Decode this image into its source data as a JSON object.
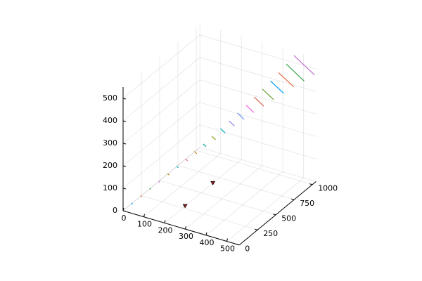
{
  "chart_data": {
    "type": "line3d",
    "xlim": [
      0,
      560
    ],
    "ylim": [
      0,
      1050
    ],
    "zlim": [
      0,
      550
    ],
    "xticks": [
      0,
      100,
      200,
      300,
      400,
      500
    ],
    "yticks": [
      0,
      250,
      500,
      750,
      1000
    ],
    "zticks": [
      0,
      100,
      200,
      300,
      400,
      500
    ],
    "grid": true,
    "series": [
      {
        "color": "#009af9",
        "x": [
          24,
          30
        ],
        "y": [
          47,
          47
        ],
        "z": [
          29,
          25
        ]
      },
      {
        "color": "#e26f46",
        "x": [
          51,
          57
        ],
        "y": [
          95,
          95
        ],
        "z": [
          56,
          52
        ]
      },
      {
        "color": "#3da44d",
        "x": [
          78,
          84
        ],
        "y": [
          142,
          142
        ],
        "z": [
          83,
          79
        ]
      },
      {
        "color": "#c271d2",
        "x": [
          105,
          111
        ],
        "y": [
          189,
          189
        ],
        "z": [
          110,
          106
        ]
      },
      {
        "color": "#ac8e18",
        "x": [
          131,
          139
        ],
        "y": [
          236,
          236
        ],
        "z": [
          137,
          133
        ]
      },
      {
        "color": "#00a9ad",
        "x": [
          158,
          166
        ],
        "y": [
          284,
          284
        ],
        "z": [
          164,
          160
        ]
      },
      {
        "color": "#ed5e93",
        "x": [
          184,
          194
        ],
        "y": [
          331,
          331
        ],
        "z": [
          192,
          186
        ]
      },
      {
        "color": "#c68225",
        "x": [
          210,
          222
        ],
        "y": [
          378,
          378
        ],
        "z": [
          220,
          212
        ]
      },
      {
        "color": "#00a98d",
        "x": [
          236,
          250
        ],
        "y": [
          425,
          425
        ],
        "z": [
          247,
          239
        ]
      },
      {
        "color": "#8e971d",
        "x": [
          261,
          279
        ],
        "y": [
          473,
          473
        ],
        "z": [
          275,
          265
        ]
      },
      {
        "color": "#00a8cb",
        "x": [
          286,
          308
        ],
        "y": [
          520,
          520
        ],
        "z": [
          304,
          290
        ]
      },
      {
        "color": "#9b7fe9",
        "x": [
          311,
          337
        ],
        "y": [
          567,
          567
        ],
        "z": [
          332,
          316
        ]
      },
      {
        "color": "#618df6",
        "x": [
          335,
          367
        ],
        "y": [
          614,
          614
        ],
        "z": [
          361,
          341
        ]
      },
      {
        "color": "#f061dd",
        "x": [
          359,
          397
        ],
        "y": [
          662,
          662
        ],
        "z": [
          389,
          367
        ]
      },
      {
        "color": "#dd6454",
        "x": [
          382,
          428
        ],
        "y": [
          709,
          709
        ],
        "z": [
          419,
          391
        ]
      },
      {
        "color": "#6b9e32",
        "x": [
          405,
          459
        ],
        "y": [
          756,
          756
        ],
        "z": [
          448,
          416
        ]
      },
      {
        "color": "#009af9",
        "x": [
          427,
          491
        ],
        "y": [
          803,
          803
        ],
        "z": [
          478,
          440
        ]
      },
      {
        "color": "#e26f46",
        "x": [
          449,
          523
        ],
        "y": [
          851,
          851
        ],
        "z": [
          508,
          464
        ]
      },
      {
        "color": "#3da44d",
        "x": [
          470,
          556
        ],
        "y": [
          898,
          898
        ],
        "z": [
          539,
          487
        ]
      },
      {
        "color": "#c271d2",
        "x": [
          490,
          590
        ],
        "y": [
          945,
          945
        ],
        "z": [
          570,
          510
        ]
      }
    ],
    "markers": {
      "color": "#8b1a1a",
      "x": [
        200,
        200
      ],
      "y": [
        280,
        660
      ],
      "z": [
        0,
        0
      ]
    }
  }
}
